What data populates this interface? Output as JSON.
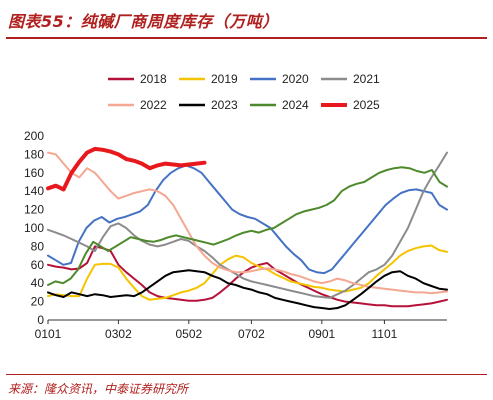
{
  "title": "图表55：纯碱厂商周度库存（万吨）",
  "source": "来源：隆众资讯，中泰证券研究所",
  "chart_data": {
    "type": "line",
    "title": "图表55：纯碱厂商周度库存（万吨）",
    "xlabel": "",
    "ylabel": "",
    "ylim": [
      0,
      200
    ],
    "yticks": [
      0,
      20,
      40,
      60,
      80,
      100,
      120,
      140,
      160,
      180,
      200
    ],
    "xlim": [
      1,
      52
    ],
    "xticks": [
      {
        "label": "0101",
        "x": 1
      },
      {
        "label": "0302",
        "x": 10
      },
      {
        "label": "0502",
        "x": 19
      },
      {
        "label": "0702",
        "x": 27
      },
      {
        "label": "0901",
        "x": 36
      },
      {
        "label": "1101",
        "x": 44
      }
    ],
    "grid": false,
    "legend": "top",
    "series": [
      {
        "name": "2018",
        "color": "#b5123a",
        "width": 2,
        "values": [
          60,
          58,
          57,
          55,
          56,
          62,
          80,
          78,
          75,
          60,
          52,
          45,
          38,
          30,
          26,
          24,
          23,
          22,
          21,
          21,
          22,
          24,
          30,
          37,
          45,
          52,
          57,
          60,
          62,
          55,
          50,
          45,
          40,
          36,
          32,
          28,
          25,
          22,
          20,
          19,
          18,
          17,
          16,
          16,
          15,
          15,
          15,
          16,
          17,
          18,
          20,
          22
        ]
      },
      {
        "name": "2019",
        "color": "#f5c400",
        "width": 2,
        "values": [
          26,
          28,
          27,
          26,
          26,
          45,
          60,
          61,
          61,
          57,
          45,
          35,
          26,
          22,
          23,
          24,
          27,
          30,
          32,
          35,
          40,
          50,
          60,
          66,
          70,
          68,
          62,
          58,
          55,
          50,
          46,
          42,
          40,
          38,
          36,
          35,
          33,
          32,
          31,
          33,
          35,
          40,
          48,
          55,
          62,
          70,
          75,
          78,
          80,
          81,
          76,
          74
        ]
      },
      {
        "name": "2020",
        "color": "#4472c4",
        "width": 2,
        "values": [
          70,
          65,
          60,
          62,
          85,
          100,
          108,
          112,
          106,
          110,
          112,
          115,
          118,
          125,
          140,
          152,
          160,
          165,
          168,
          165,
          160,
          150,
          140,
          130,
          120,
          115,
          112,
          110,
          105,
          100,
          90,
          80,
          72,
          65,
          55,
          52,
          51,
          55,
          65,
          75,
          85,
          95,
          105,
          115,
          125,
          132,
          138,
          141,
          142,
          140,
          138,
          125,
          120
        ]
      },
      {
        "name": "2021",
        "color": "#8c8c8c",
        "width": 2,
        "values": [
          98,
          95,
          92,
          88,
          84,
          80,
          75,
          90,
          102,
          105,
          100,
          92,
          86,
          82,
          80,
          82,
          85,
          88,
          86,
          80,
          75,
          68,
          60,
          55,
          50,
          45,
          42,
          40,
          38,
          36,
          34,
          32,
          30,
          28,
          26,
          25,
          24,
          28,
          32,
          38,
          45,
          52,
          55,
          60,
          70,
          85,
          100,
          120,
          140,
          155,
          168,
          182
        ]
      },
      {
        "name": "2022",
        "color": "#f4a792",
        "width": 2,
        "values": [
          182,
          180,
          170,
          160,
          155,
          165,
          160,
          150,
          140,
          132,
          135,
          138,
          140,
          142,
          140,
          135,
          125,
          110,
          95,
          80,
          70,
          62,
          57,
          54,
          52,
          52,
          53,
          55,
          56,
          55,
          53,
          50,
          48,
          45,
          42,
          40,
          42,
          45,
          43,
          40,
          38,
          36,
          35,
          34,
          33,
          32,
          31,
          30,
          30,
          29,
          30,
          31
        ]
      },
      {
        "name": "2023",
        "color": "#000000",
        "width": 2,
        "values": [
          30,
          27,
          25,
          30,
          28,
          26,
          28,
          27,
          25,
          26,
          27,
          26,
          30,
          36,
          42,
          48,
          52,
          53,
          54,
          53,
          52,
          48,
          45,
          40,
          38,
          35,
          33,
          30,
          28,
          24,
          22,
          20,
          18,
          16,
          14,
          13,
          12,
          13,
          16,
          22,
          28,
          35,
          42,
          48,
          52,
          53,
          48,
          45,
          40,
          37,
          34,
          33
        ]
      },
      {
        "name": "2024",
        "color": "#4e8a2c",
        "width": 2,
        "values": [
          38,
          42,
          40,
          45,
          55,
          72,
          85,
          80,
          75,
          80,
          85,
          90,
          88,
          86,
          85,
          87,
          90,
          92,
          90,
          88,
          86,
          84,
          82,
          85,
          88,
          92,
          95,
          97,
          95,
          98,
          100,
          105,
          110,
          115,
          118,
          120,
          122,
          125,
          130,
          140,
          145,
          148,
          150,
          155,
          160,
          163,
          165,
          166,
          165,
          162,
          160,
          163,
          150,
          145
        ]
      },
      {
        "name": "2025",
        "color": "#e8191d",
        "width": 4,
        "values": [
          143,
          146,
          142,
          160,
          172,
          182,
          186,
          185,
          183,
          180,
          175,
          173,
          170,
          165,
          168,
          170,
          169,
          168,
          169,
          170,
          171
        ]
      }
    ]
  }
}
